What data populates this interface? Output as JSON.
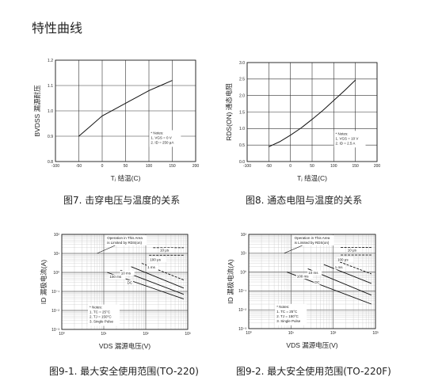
{
  "page_title": "特性曲线",
  "chart_data": [
    {
      "type": "line",
      "caption": "图7. 击穿电压与温度的关系",
      "xlabel": "Tⱼ 结温(C)",
      "ylabel": "BVDSS 漏源耐压",
      "xlim": [
        -100,
        200
      ],
      "ylim": [
        0.8,
        1.2
      ],
      "xticks": [
        "-100",
        "-50",
        "0",
        "50",
        "100",
        "150",
        "200"
      ],
      "yticks": [
        "0.8",
        "0.9",
        "1.0",
        "1.1",
        "1.2"
      ],
      "notes": [
        "* Notes:",
        "1. VGS = 0 V",
        "2. ID = 250 μA"
      ],
      "series": [
        {
          "x": [
            -50,
            -25,
            0,
            25,
            50,
            75,
            100,
            125,
            150
          ],
          "y": [
            0.9,
            0.94,
            0.98,
            1.005,
            1.03,
            1.055,
            1.08,
            1.1,
            1.12
          ]
        }
      ]
    },
    {
      "type": "line",
      "caption": "图8. 通态电阻与温度的关系",
      "xlabel": "Tⱼ 结温(C)",
      "ylabel": "RDS(ON) 通态电阻",
      "xlim": [
        -100,
        200
      ],
      "ylim": [
        0.0,
        3.0
      ],
      "xticks": [
        "-100",
        "-50",
        "0",
        "50",
        "100",
        "150",
        "200"
      ],
      "yticks": [
        "0.0",
        "0.5",
        "1.0",
        "1.5",
        "2.0",
        "2.5",
        "3.0"
      ],
      "notes": [
        "* Notes:",
        "1. VGS = 10 V",
        "2. ID = 2.5 A"
      ],
      "series": [
        {
          "x": [
            -50,
            -25,
            0,
            25,
            50,
            75,
            100,
            125,
            150
          ],
          "y": [
            0.45,
            0.6,
            0.8,
            1.02,
            1.28,
            1.55,
            1.85,
            2.15,
            2.47
          ]
        }
      ]
    },
    {
      "type": "line",
      "caption": "图9-1. 最大安全使用范围(TO-220)",
      "xlabel": "VDS 漏源电压(V)",
      "ylabel": "ID 漏极电流(A)",
      "log_scale": true,
      "xlim": [
        1,
        1000
      ],
      "ylim": [
        0.001,
        100
      ],
      "xticks": [
        "10⁰",
        "10¹",
        "10²",
        "10³"
      ],
      "yticks": [
        "10⁻³",
        "10⁻²",
        "10⁻¹",
        "10⁰",
        "10¹",
        "10²"
      ],
      "annotations": [
        "Operation in This Area is Limited by RDS(on)",
        "10 μs",
        "100 μs",
        "1 ms",
        "10 ms",
        "100 ms",
        "DC"
      ],
      "notes": [
        "* Notes:",
        "1. TC = 25°C",
        "2. TJ = 150°C",
        "3. Single Pulse"
      ],
      "series": [
        {
          "name": "10 μs",
          "x": [
            150,
            800
          ],
          "y": [
            20,
            20
          ]
        },
        {
          "name": "100 μs",
          "x": [
            120,
            800
          ],
          "y": [
            8,
            8
          ]
        },
        {
          "name": "1 ms",
          "x": [
            80,
            800
          ],
          "y": [
            3,
            0.4
          ]
        },
        {
          "name": "10 ms",
          "x": [
            45,
            800
          ],
          "y": [
            2,
            0.15
          ]
        },
        {
          "name": "100 ms",
          "x": [
            25,
            800
          ],
          "y": [
            1.3,
            0.07
          ]
        },
        {
          "name": "DC",
          "x": [
            12,
            800
          ],
          "y": [
            1.0,
            0.04
          ]
        }
      ]
    },
    {
      "type": "line",
      "caption": "图9-2. 最大安全使用范围(TO-220F)",
      "xlabel": "VDS 漏源电压(V)",
      "ylabel": "ID 漏极电流(A)",
      "log_scale": true,
      "xlim": [
        1,
        1000
      ],
      "ylim": [
        0.001,
        100
      ],
      "xticks": [
        "10⁰",
        "10¹",
        "10²",
        "10³"
      ],
      "yticks": [
        "10⁻³",
        "10⁻²",
        "10⁻¹",
        "10⁰",
        "10¹",
        "10²"
      ],
      "annotations": [
        "Operation in This Area is Limited by RDS(on)",
        "10 μs",
        "100 μs",
        "1 ms",
        "10 ms",
        "100 ms",
        "DC"
      ],
      "notes": [
        "* Notes:",
        "1. TC = 25°C",
        "2. TJ = 150°C",
        "3. Single Pulse"
      ],
      "series": [
        {
          "name": "10 μs",
          "x": [
            150,
            800
          ],
          "y": [
            20,
            20
          ]
        },
        {
          "name": "100 μs",
          "x": [
            150,
            800
          ],
          "y": [
            8,
            8
          ]
        },
        {
          "name": "1 ms",
          "x": [
            120,
            800
          ],
          "y": [
            4,
            0.8
          ]
        },
        {
          "name": "10 ms",
          "x": [
            60,
            800
          ],
          "y": [
            2.5,
            0.25
          ]
        },
        {
          "name": "100 ms",
          "x": [
            25,
            800
          ],
          "y": [
            1.5,
            0.06
          ]
        },
        {
          "name": "DC",
          "x": [
            8,
            800
          ],
          "y": [
            1.0,
            0.02
          ]
        }
      ]
    }
  ]
}
